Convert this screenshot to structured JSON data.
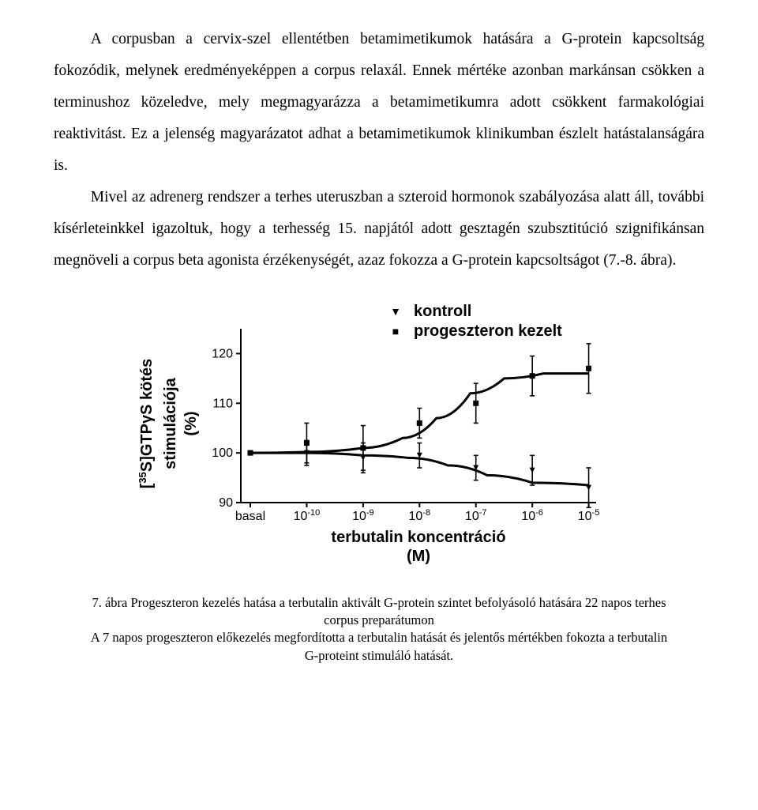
{
  "paragraphs": {
    "p1": "A corpusban a cervix-szel ellentétben betamimetikumok hatására a G-protein kapcsoltság fokozódik, melynek eredményeképpen a corpus relaxál. Ennek mértéke azonban markánsan csökken a terminushoz közeledve, mely megmagyarázza a betamimetikumra adott csökkent farmakológiai reaktivitást. Ez a jelenség magyarázatot adhat a betamimetikumok klinikumban észlelt hatástalanságára is.",
    "p2": "Mivel az adrenerg rendszer a terhes uteruszban a szteroid hormonok szabályozása alatt áll, további kísérleteinkkel igazoltuk, hogy a terhesség 15. napjától adott gesztagén szubsztitúció szignifikánsan megnöveli a corpus beta agonista érzékenységét, azaz fokozza a G-protein kapcsoltságot (7.-8. ábra)."
  },
  "legend": {
    "items": [
      {
        "marker": "▼",
        "label": "kontroll"
      },
      {
        "marker": "■",
        "label": "progeszteron kezelt"
      }
    ]
  },
  "chart": {
    "type": "line-errorbar",
    "background_color": "#ffffff",
    "axis_color": "#000000",
    "axis_linewidth": 2,
    "tick_len": 6,
    "marker_size": 7,
    "errorbar_cap": 6,
    "line_width": 3,
    "font_family": "Arial, Helvetica, sans-serif",
    "axis_label_fontsize": 20,
    "axis_label_fontweight": "700",
    "tick_fontsize": 16,
    "y": {
      "label_line1": "[  S]GTPγS kötés",
      "label_sup": "35",
      "label_line2": "stimulációja",
      "label_line3": "(%)",
      "min": 90,
      "max": 125,
      "ticks": [
        90,
        100,
        110,
        120
      ]
    },
    "x": {
      "label_line1": "terbutalin koncentráció",
      "label_line2": "(M)",
      "categories": [
        "basal",
        "-10",
        "-9",
        "-8",
        "-7",
        "-6",
        "-5"
      ],
      "tick_prefix": "10"
    },
    "series": [
      {
        "name": "kontroll",
        "marker": "triangle-down",
        "color": "#000000",
        "y": [
          100,
          100,
          99,
          99.5,
          97,
          96.5,
          93
        ],
        "err": [
          0,
          2.5,
          3,
          2.5,
          2.5,
          3,
          4
        ],
        "curve": [
          [
            0,
            100
          ],
          [
            1,
            100
          ],
          [
            2,
            99.5
          ],
          [
            2.8,
            99
          ],
          [
            3.5,
            97.5
          ],
          [
            4.2,
            95.5
          ],
          [
            5,
            94
          ],
          [
            6,
            93.5
          ]
        ]
      },
      {
        "name": "progeszteron kezelt",
        "marker": "square",
        "color": "#000000",
        "y": [
          100,
          102,
          101,
          106,
          110,
          115.5,
          117
        ],
        "err": [
          0,
          4,
          4.5,
          3,
          4,
          4,
          5
        ],
        "curve": [
          [
            0,
            100
          ],
          [
            1,
            100.2
          ],
          [
            2,
            101
          ],
          [
            2.7,
            103
          ],
          [
            3.3,
            107
          ],
          [
            3.9,
            112
          ],
          [
            4.5,
            115
          ],
          [
            5.2,
            116
          ],
          [
            6,
            116
          ]
        ]
      }
    ]
  },
  "caption": {
    "l1": "7. ábra Progeszteron kezelés hatása a terbutalin aktivált G-protein szintet befolyásoló hatására 22 napos terhes",
    "l2": "corpus preparátumon",
    "l3": "A 7 napos progeszteron előkezelés megfordította a terbutalin hatását és jelentős mértékben fokozta a terbutalin",
    "l4": "G-proteint stimuláló hatását."
  }
}
